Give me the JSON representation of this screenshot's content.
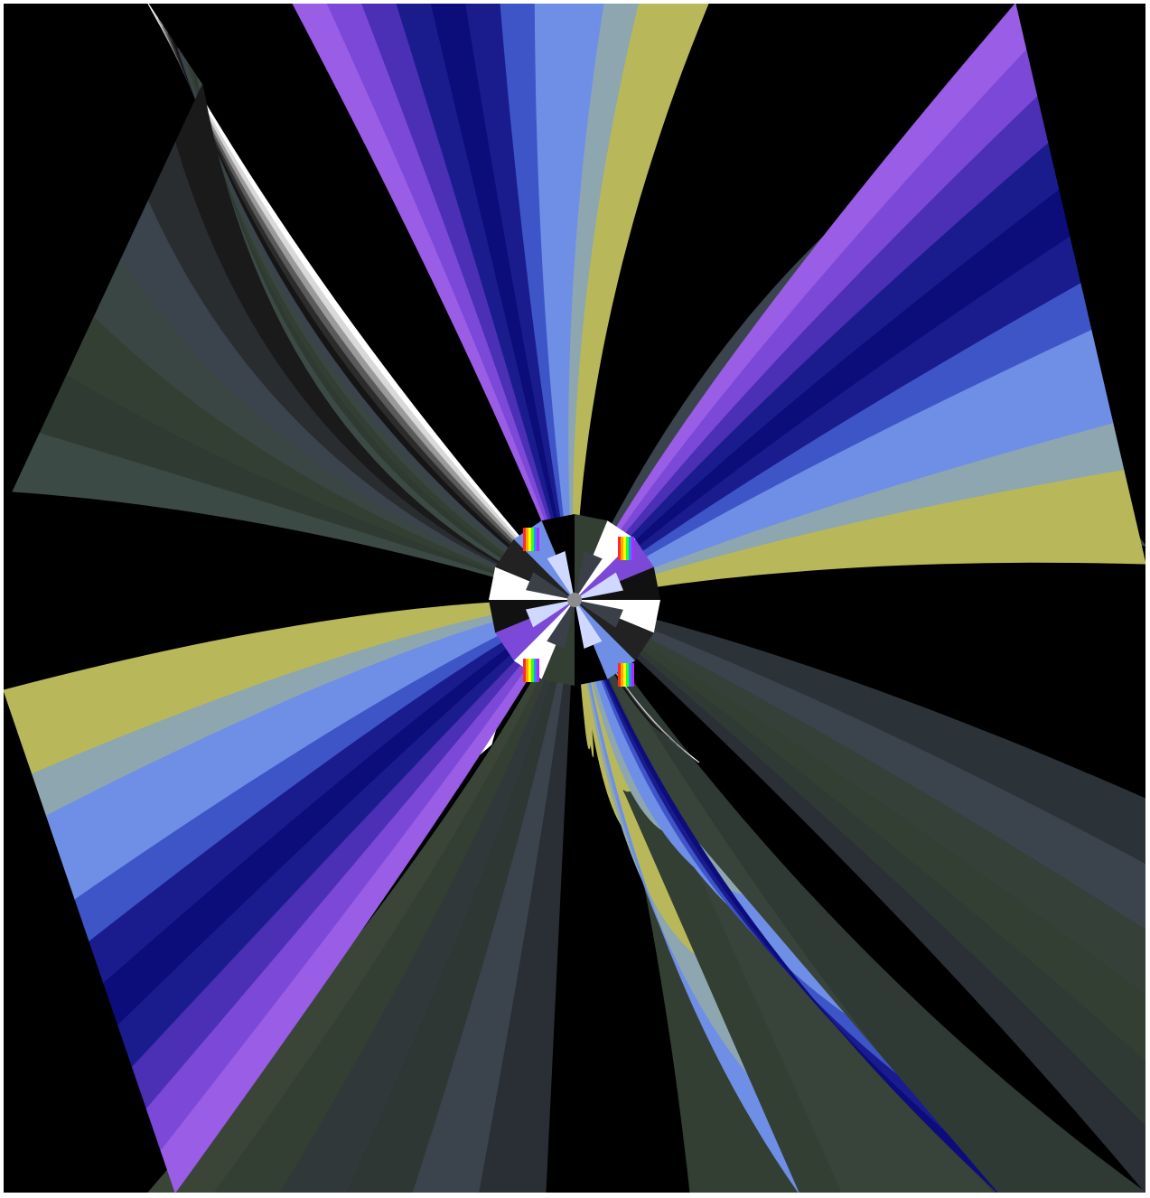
{
  "image": {
    "subject": "fractal-art",
    "background_color": "#000000",
    "border_color": "#ffffff",
    "palette": {
      "violet_light": "#9a5de6",
      "violet": "#7b48d8",
      "indigo": "#4b2fb5",
      "navy": "#1a1c8e",
      "deep_navy": "#0c0d7a",
      "blue": "#3e55c8",
      "periwinkle": "#6f8fe6",
      "grey_blue": "#8ea6b0",
      "olive_yellow": "#b8b85a",
      "dark_olive": "#343f34",
      "slate": "#3b434d",
      "charcoal": "#1a1a1a",
      "white": "#ffffff"
    }
  }
}
